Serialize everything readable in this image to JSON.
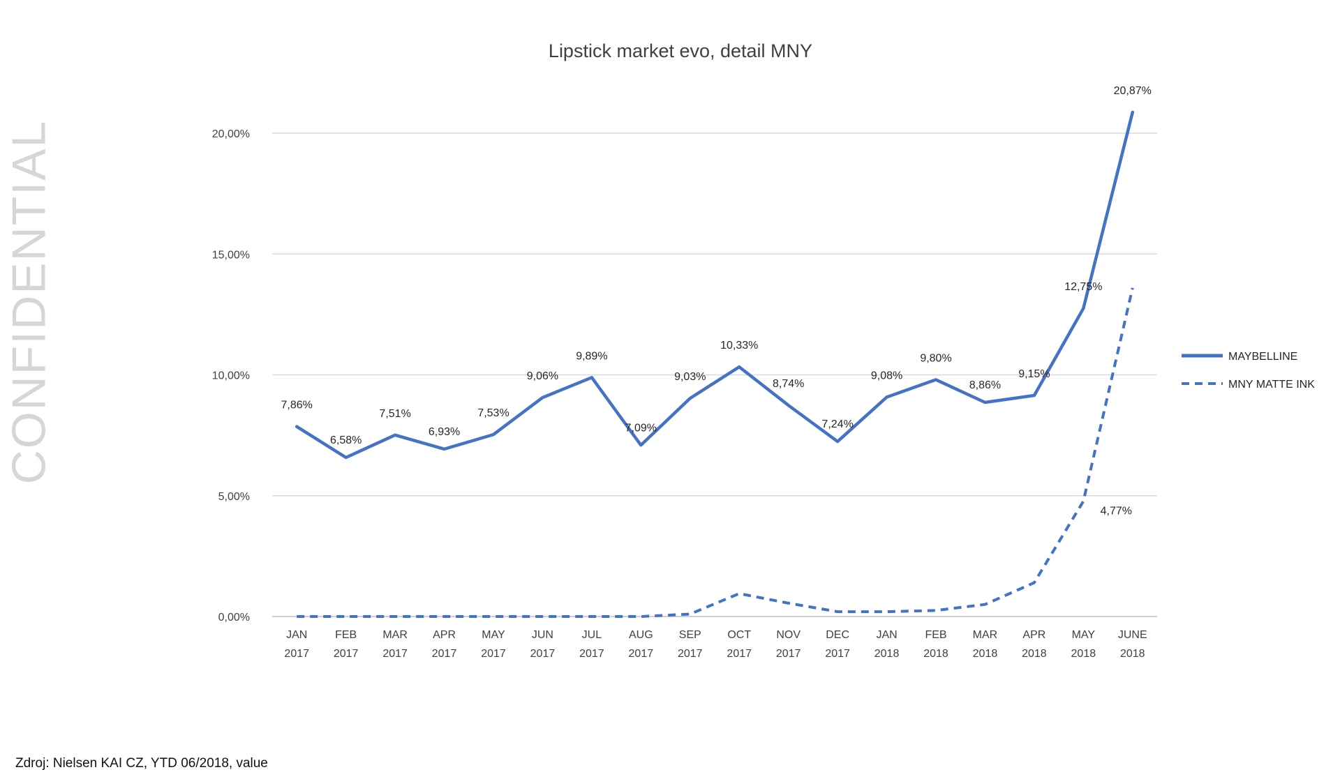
{
  "watermark": "CONFIDENTIAL",
  "source": "Zdroj: Nielsen KAI CZ, YTD 06/2018, value",
  "chart_data": {
    "type": "line",
    "title": "Lipstick market evo, detail MNY",
    "categories": [
      [
        "JAN",
        "2017"
      ],
      [
        "FEB",
        "2017"
      ],
      [
        "MAR",
        "2017"
      ],
      [
        "APR",
        "2017"
      ],
      [
        "MAY",
        "2017"
      ],
      [
        "JUN",
        "2017"
      ],
      [
        "JUL",
        "2017"
      ],
      [
        "AUG",
        "2017"
      ],
      [
        "SEP",
        "2017"
      ],
      [
        "OCT",
        "2017"
      ],
      [
        "NOV",
        "2017"
      ],
      [
        "DEC",
        "2017"
      ],
      [
        "JAN",
        "2018"
      ],
      [
        "FEB",
        "2018"
      ],
      [
        "MAR",
        "2018"
      ],
      [
        "APR",
        "2018"
      ],
      [
        "MAY",
        "2018"
      ],
      [
        "JUNE",
        "2018"
      ]
    ],
    "ylim": [
      0,
      20
    ],
    "yticks": [
      0,
      5,
      10,
      15,
      20
    ],
    "ytick_labels": [
      "0,00%",
      "5,00%",
      "10,00%",
      "15,00%",
      "20,00%"
    ],
    "grid": true,
    "legend_position": "right",
    "series": [
      {
        "name": "MAYBELLINE",
        "style": "solid",
        "color": "#4472C4",
        "values": [
          7.86,
          6.58,
          7.51,
          6.93,
          7.53,
          9.06,
          9.89,
          7.09,
          9.03,
          10.33,
          8.74,
          7.24,
          9.08,
          9.8,
          8.86,
          9.15,
          12.75,
          20.87
        ],
        "labels": [
          "7,86%",
          "6,58%",
          "7,51%",
          "6,93%",
          "7,53%",
          "9,06%",
          "9,89%",
          "7,09%",
          "9,03%",
          "10,33%",
          "8,74%",
          "7,24%",
          "9,08%",
          "9,80%",
          "8,86%",
          "9,15%",
          "12,75%",
          "20,87%"
        ]
      },
      {
        "name": "MNY MATTE INK",
        "style": "dashed",
        "color": "#4472C4",
        "values": [
          0,
          0,
          0,
          0,
          0,
          0,
          0,
          0,
          0.1,
          0.95,
          0.55,
          0.2,
          0.2,
          0.25,
          0.5,
          1.4,
          4.77,
          13.6
        ],
        "labels": [
          "",
          "",
          "",
          "",
          "",
          "",
          "",
          "",
          "",
          "",
          "",
          "",
          "",
          "",
          "",
          "",
          "4,77%",
          ""
        ]
      }
    ]
  }
}
